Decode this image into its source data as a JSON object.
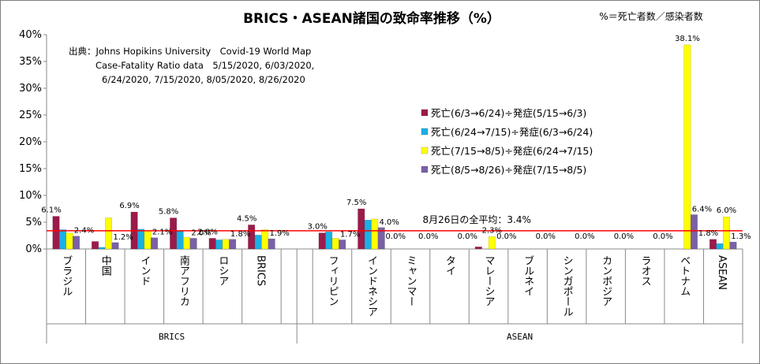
{
  "chart_data": {
    "type": "bar",
    "title": "BRICS・ASEAN諸国の致命率推移（%）",
    "formula_note": "%＝死亡者数／感染者数",
    "source_lines": [
      "出典：Johns Hopikins University　Covid-19 World Map",
      "Case-Fatality Ratio data　5/15/2020, 6/03/2020,",
      "6/24/2020, 7/15/2020, 8/05/2020, 8/26/2020"
    ],
    "yticks": [
      "0%",
      "5%",
      "10%",
      "15%",
      "20%",
      "25%",
      "30%",
      "35%",
      "40%"
    ],
    "ylim": [
      0,
      40
    ],
    "grid": false,
    "legend_position": "center-right",
    "groups": [
      {
        "label": "BRICS",
        "categories": [
          "ブラジル",
          "中国",
          "インド",
          "南アフリカ",
          "ロシア",
          "BRICS"
        ]
      },
      {
        "label": "ASEAN",
        "categories": [
          "フィリピン",
          "インドネシア",
          "ミャンマー",
          "タイ",
          "マレーシア",
          "ブルネイ",
          "シンガポール",
          "カンボジア",
          "ラオス",
          "ベトナム",
          "ASEAN"
        ]
      }
    ],
    "categories": [
      "ブラジル",
      "中国",
      "インド",
      "南アフリカ",
      "ロシア",
      "BRICS",
      "フィリピン",
      "インドネシア",
      "ミャンマー",
      "タイ",
      "マレーシア",
      "ブルネイ",
      "シンガポール",
      "カンボジア",
      "ラオス",
      "ベトナム",
      "ASEAN"
    ],
    "series": [
      {
        "name": "死亡(6/3→6/24)÷発症(5/15→6/3)",
        "color": "#9b1b4a",
        "values": [
          6.1,
          1.4,
          6.9,
          5.8,
          2.0,
          4.5,
          3.0,
          7.5,
          0.0,
          0.0,
          0.4,
          0.0,
          0.0,
          0.0,
          0.0,
          0.0,
          1.8
        ]
      },
      {
        "name": "死亡(6/24→7/15)÷発症(6/3→6/24)",
        "color": "#19b0e6",
        "values": [
          3.6,
          0.3,
          3.7,
          3.3,
          1.7,
          2.6,
          3.2,
          5.4,
          0.0,
          0.0,
          0.0,
          0.0,
          0.0,
          0.0,
          0.0,
          0.0,
          1.0
        ]
      },
      {
        "name": "死亡(7/15→8/5)÷発症(6/24→7/15)",
        "color": "#ffff00",
        "values": [
          3.0,
          5.8,
          3.4,
          2.2,
          1.8,
          3.6,
          2.0,
          5.6,
          0.0,
          0.0,
          2.3,
          0.0,
          0.0,
          0.0,
          0.0,
          38.1,
          6.0
        ]
      },
      {
        "name": "死亡(8/5→8/26)÷発症(7/15→8/5)",
        "color": "#7a60a8",
        "values": [
          2.4,
          1.2,
          2.1,
          2.0,
          1.8,
          1.9,
          1.7,
          4.0,
          0.0,
          0.0,
          0.0,
          0.0,
          0.0,
          0.0,
          0.0,
          6.4,
          1.3
        ]
      }
    ],
    "data_labels": [
      {
        "category": 0,
        "series": 0,
        "text": "6.1%"
      },
      {
        "category": 0,
        "series": 3,
        "text": "2.4%"
      },
      {
        "category": 1,
        "series": 3,
        "text": "1.2%"
      },
      {
        "category": 2,
        "series": 0,
        "text": "6.9%"
      },
      {
        "category": 2,
        "series": 3,
        "text": "2.1%"
      },
      {
        "category": 3,
        "series": 0,
        "text": "5.8%"
      },
      {
        "category": 3,
        "series": 3,
        "text": "2.0%"
      },
      {
        "category": 4,
        "series": 0,
        "text": "2.0%"
      },
      {
        "category": 4,
        "series": 3,
        "text": "1.8%"
      },
      {
        "category": 5,
        "series": 0,
        "text": "4.5%"
      },
      {
        "category": 5,
        "series": 3,
        "text": "1.9%"
      },
      {
        "category": 6,
        "series": 0,
        "text": "3.0%"
      },
      {
        "category": 6,
        "series": 3,
        "text": "1.7%"
      },
      {
        "category": 7,
        "series": 0,
        "text": "7.5%"
      },
      {
        "category": 7,
        "series": 3,
        "text": "4.0%"
      },
      {
        "category": 8,
        "series": 0,
        "text": "0.0%"
      },
      {
        "category": 8,
        "series": 3,
        "text": "0.0%"
      },
      {
        "category": 9,
        "series": 3,
        "text": "0.0%"
      },
      {
        "category": 10,
        "series": 2,
        "text": "2.3%"
      },
      {
        "category": 10,
        "series": 3,
        "text": "0.0%"
      },
      {
        "category": 11,
        "series": 3,
        "text": "0.0%"
      },
      {
        "category": 12,
        "series": 3,
        "text": "0.0%"
      },
      {
        "category": 13,
        "series": 3,
        "text": "0.0%"
      },
      {
        "category": 14,
        "series": 3,
        "text": "0.0%"
      },
      {
        "category": 15,
        "series": 2,
        "text": "38.1%"
      },
      {
        "category": 15,
        "series": 3,
        "text": "6.4%"
      },
      {
        "category": 16,
        "series": 0,
        "text": "1.8%"
      },
      {
        "category": 16,
        "series": 2,
        "text": "6.0%"
      },
      {
        "category": 16,
        "series": 3,
        "text": "1.3%"
      }
    ],
    "reference_line": {
      "value": 3.4,
      "label": "8月26日の全平均：3.4%",
      "color": "#ff0000"
    }
  }
}
